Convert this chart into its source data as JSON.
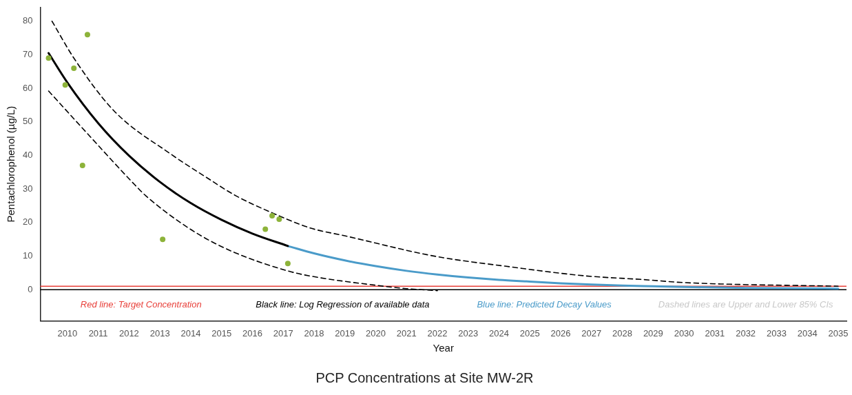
{
  "chart_data": {
    "type": "scatter",
    "title": "PCP Concentrations at Site MW-2R",
    "xlabel": "Year",
    "ylabel": "Pentachlorophenol (µg/L)",
    "xlim": [
      2009.12,
      2035.27
    ],
    "xticks": [
      2010,
      2011,
      2012,
      2013,
      2014,
      2015,
      2016,
      2017,
      2018,
      2019,
      2020,
      2021,
      2022,
      2023,
      2024,
      2025,
      2026,
      2027,
      2028,
      2029,
      2030,
      2031,
      2032,
      2033,
      2034,
      2035
    ],
    "ylim": [
      -9.3,
      84.1
    ],
    "yticks": [
      0,
      10,
      20,
      30,
      40,
      50,
      60,
      70,
      80
    ],
    "grid": false,
    "legend": "bottom",
    "series": [
      {
        "color": "#8db33a",
        "marker": "circle",
        "x": [
          2009.39,
          2009.93,
          2010.21,
          2010.65,
          2010.49,
          2013.09,
          2016.42,
          2016.64,
          2016.87,
          2017.15
        ],
        "values": [
          69,
          61,
          66,
          76,
          37,
          15,
          18,
          22,
          21,
          7.8
        ]
      },
      {
        "type": "line",
        "name": "Black line: Log Regression of available data",
        "color": "#000000",
        "marker": "none",
        "line_style": "solid",
        "x": [
          2009.39,
          2010,
          2011,
          2012,
          2013,
          2014,
          2015,
          2016,
          2017.15
        ],
        "values": [
          70.5,
          61.7,
          49.6,
          39.9,
          32.1,
          25.8,
          20.8,
          16.7,
          13.0
        ]
      },
      {
        "type": "line",
        "name": "Blue line: Predicted Decay Values",
        "color": "#4a9bc9",
        "marker": "none",
        "line_style": "solid",
        "x": [
          2017.15,
          2018,
          2019,
          2020,
          2021,
          2022,
          2023,
          2024,
          2025,
          2026,
          2027,
          2028,
          2029,
          2030,
          2032,
          2035
        ],
        "values": [
          13.0,
          10.8,
          8.7,
          7.0,
          5.6,
          4.5,
          3.6,
          2.9,
          2.4,
          1.9,
          1.5,
          1.2,
          1.0,
          0.8,
          0.5,
          0.3
        ]
      },
      {
        "type": "line",
        "color": "#000000",
        "marker": "none",
        "line_style": "dashed",
        "x": [
          2009.5,
          2010.21,
          2011.51,
          2013.37,
          2014.5,
          2015.46,
          2016.64,
          2017.9,
          2018.97,
          2021.95,
          2024.19,
          2026.8,
          2028.67,
          2030,
          2035
        ],
        "values": [
          80,
          69,
          53.3,
          40.3,
          33.5,
          28.0,
          22.9,
          18.3,
          16.1,
          9.9,
          7.0,
          4.1,
          3.0,
          2.1,
          1.0
        ]
      },
      {
        "type": "line",
        "color": "#000000",
        "marker": "none",
        "line_style": "dashed",
        "x": [
          2009.39,
          2010.5,
          2012.18,
          2012.54,
          2013.99,
          2015.24,
          2017.1,
          2017.85,
          2020,
          2021,
          2022
        ],
        "values": [
          59.2,
          48.0,
          31.3,
          28.0,
          18.0,
          11.8,
          5.7,
          4.1,
          1.3,
          0.3,
          -0.3
        ]
      }
    ],
    "ref_lines": [
      {
        "axis": "y",
        "value": 1,
        "label": "Red line: Target Concentration",
        "color": "#e8403a"
      },
      {
        "axis": "y",
        "value": 0,
        "color": "#000000"
      }
    ],
    "annotations": [
      "Dashed lines are Upper and Lower 85% CIs"
    ]
  }
}
